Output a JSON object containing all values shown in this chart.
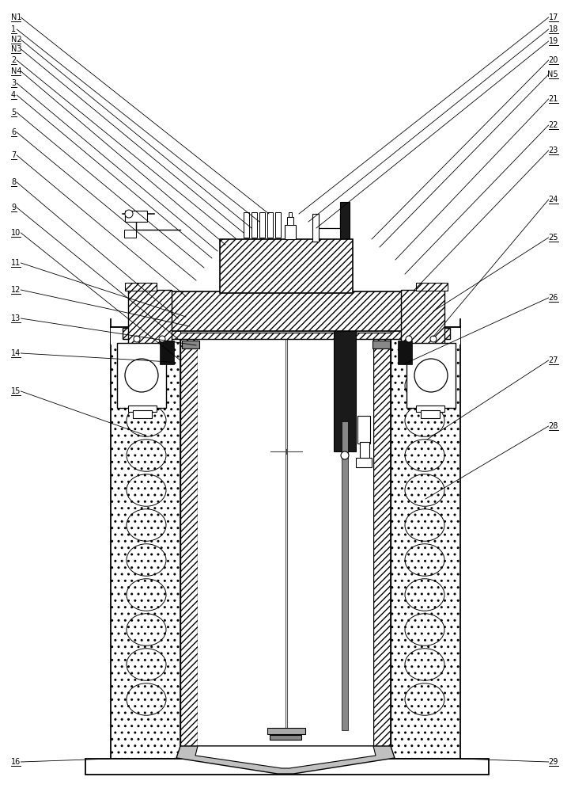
{
  "bg": "#ffffff",
  "lc": "#000000",
  "left_labels": [
    [
      "N1",
      0.978
    ],
    [
      "1",
      0.963
    ],
    [
      "N2",
      0.95
    ],
    [
      "N3",
      0.938
    ],
    [
      "2",
      0.924
    ],
    [
      "N4",
      0.91
    ],
    [
      "3",
      0.895
    ],
    [
      "4",
      0.88
    ],
    [
      "5",
      0.858
    ],
    [
      "6",
      0.833
    ],
    [
      "7",
      0.804
    ],
    [
      "8",
      0.77
    ],
    [
      "9",
      0.738
    ],
    [
      "10",
      0.706
    ],
    [
      "11",
      0.668
    ],
    [
      "12",
      0.634
    ],
    [
      "13",
      0.598
    ],
    [
      "14",
      0.554
    ],
    [
      "15",
      0.506
    ],
    [
      "16",
      0.038
    ]
  ],
  "right_labels": [
    [
      "17",
      0.978
    ],
    [
      "18",
      0.963
    ],
    [
      "19",
      0.948
    ],
    [
      "20",
      0.924
    ],
    [
      "N5",
      0.906
    ],
    [
      "21",
      0.875
    ],
    [
      "22",
      0.842
    ],
    [
      "23",
      0.81
    ],
    [
      "24",
      0.748
    ],
    [
      "25",
      0.7
    ],
    [
      "26",
      0.624
    ],
    [
      "27",
      0.545
    ],
    [
      "28",
      0.462
    ],
    [
      "29",
      0.038
    ]
  ]
}
